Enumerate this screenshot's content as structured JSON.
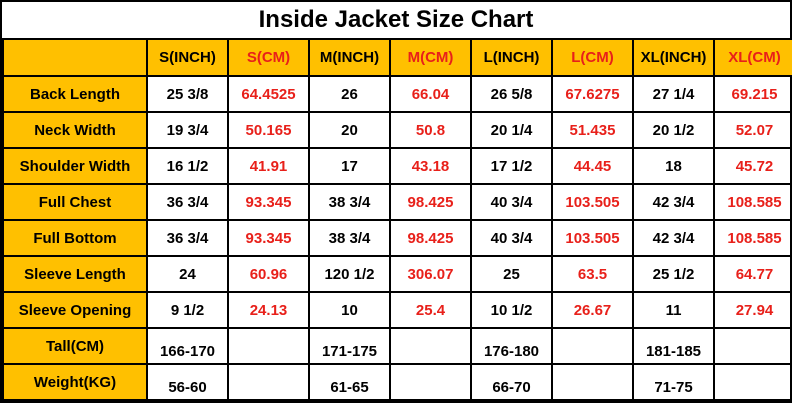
{
  "title": "Inside Jacket Size Chart",
  "colors": {
    "header_bg": "#FFC000",
    "label_bg": "#FFC000",
    "cm_text": "#E8201A",
    "inch_text": "#000000",
    "border": "#000000",
    "background": "#FFFFFF"
  },
  "chart_data": {
    "type": "table",
    "title": "Inside Jacket Size Chart",
    "columns": [
      "",
      "S(INCH)",
      "S(CM)",
      "M(INCH)",
      "M(CM)",
      "L(INCH)",
      "L(CM)",
      "XL(INCH)",
      "XL(CM)"
    ],
    "cm_columns": [
      2,
      4,
      6,
      8
    ],
    "rows": [
      {
        "label": "Back Length",
        "values": [
          "25 3/8",
          "64.4525",
          "26",
          "66.04",
          "26 5/8",
          "67.6275",
          "27 1/4",
          "69.215"
        ]
      },
      {
        "label": "Neck Width",
        "values": [
          "19 3/4",
          "50.165",
          "20",
          "50.8",
          "20 1/4",
          "51.435",
          "20 1/2",
          "52.07"
        ]
      },
      {
        "label": "Shoulder Width",
        "values": [
          "16 1/2",
          "41.91",
          "17",
          "43.18",
          "17 1/2",
          "44.45",
          "18",
          "45.72"
        ]
      },
      {
        "label": "Full Chest",
        "values": [
          "36 3/4",
          "93.345",
          "38 3/4",
          "98.425",
          "40 3/4",
          "103.505",
          "42 3/4",
          "108.585"
        ]
      },
      {
        "label": "Full Bottom",
        "values": [
          "36 3/4",
          "93.345",
          "38 3/4",
          "98.425",
          "40 3/4",
          "103.505",
          "42 3/4",
          "108.585"
        ]
      },
      {
        "label": "Sleeve Length",
        "values": [
          "24",
          "60.96",
          "120 1/2",
          "306.07",
          "25",
          "63.5",
          "25 1/2",
          "64.77"
        ]
      },
      {
        "label": "Sleeve Opening",
        "values": [
          "9 1/2",
          "24.13",
          "10",
          "25.4",
          "10 1/2",
          "26.67",
          "11",
          "27.94"
        ]
      },
      {
        "label": "Tall(CM)",
        "values": [
          "166-170",
          "",
          "171-175",
          "",
          "176-180",
          "",
          "181-185",
          ""
        ],
        "valign": "bottom"
      },
      {
        "label": "Weight(KG)",
        "values": [
          "56-60",
          "",
          "61-65",
          "",
          "66-70",
          "",
          "71-75",
          ""
        ],
        "valign": "bottom"
      }
    ]
  }
}
